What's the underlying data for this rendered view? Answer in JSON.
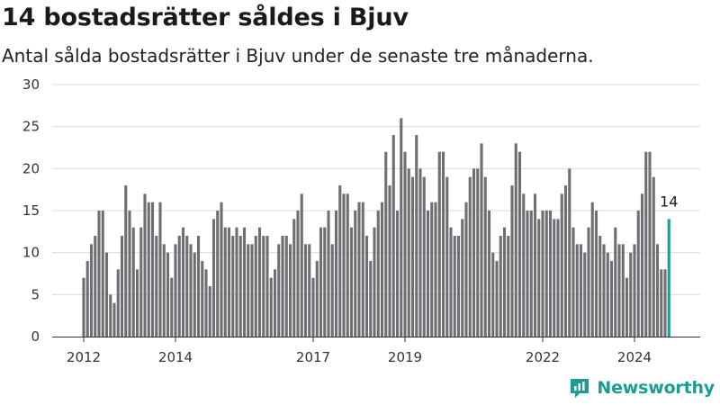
{
  "header": {
    "title": "14 bostadsrätter såldes i Bjuv",
    "subtitle": "Antal sålda bostadsrätter i Bjuv under de senaste tre månaderna."
  },
  "brand": {
    "name": "Newsworthy",
    "icon": "newsworthy-logo-icon",
    "color": "#1a9e93"
  },
  "chart_data": {
    "type": "bar",
    "title": "14 bostadsrätter såldes i Bjuv",
    "subtitle": "Antal sålda bostadsrätter i Bjuv under de senaste tre månaderna.",
    "xlabel": "",
    "ylabel": "",
    "ylim": [
      0,
      30
    ],
    "yticks": [
      0,
      5,
      10,
      15,
      20,
      25,
      30
    ],
    "x_start": "2012-01",
    "x_step": "month",
    "xticks": [
      {
        "label": "2012",
        "date": "2012-01"
      },
      {
        "label": "2014",
        "date": "2014-01"
      },
      {
        "label": "2017",
        "date": "2017-01"
      },
      {
        "label": "2019",
        "date": "2019-01"
      },
      {
        "label": "2022",
        "date": "2022-01"
      },
      {
        "label": "2024",
        "date": "2024-01"
      }
    ],
    "grid": true,
    "bar_color": "#6f6e73",
    "highlight_color": "#1a9e93",
    "last_value_label": "14",
    "values": [
      7,
      9,
      11,
      12,
      15,
      15,
      10,
      5,
      4,
      8,
      12,
      18,
      15,
      13,
      8,
      13,
      17,
      16,
      16,
      12,
      16,
      11,
      10,
      7,
      11,
      12,
      13,
      12,
      11,
      10,
      12,
      9,
      8,
      6,
      14,
      15,
      16,
      13,
      13,
      12,
      13,
      12,
      13,
      11,
      11,
      12,
      13,
      12,
      12,
      7,
      8,
      11,
      12,
      12,
      11,
      14,
      15,
      17,
      11,
      11,
      7,
      9,
      13,
      13,
      15,
      11,
      15,
      18,
      17,
      17,
      13,
      15,
      16,
      16,
      12,
      9,
      13,
      15,
      16,
      22,
      18,
      24,
      15,
      26,
      22,
      20,
      19,
      24,
      20,
      19,
      15,
      16,
      16,
      22,
      22,
      19,
      13,
      12,
      12,
      14,
      16,
      19,
      20,
      20,
      23,
      19,
      15,
      10,
      9,
      12,
      13,
      12,
      18,
      23,
      22,
      17,
      15,
      15,
      17,
      14,
      15,
      15,
      15,
      14,
      14,
      17,
      18,
      20,
      13,
      11,
      11,
      10,
      13,
      16,
      15,
      12,
      11,
      10,
      9,
      13,
      11,
      11,
      7,
      10,
      11,
      15,
      17,
      22,
      22,
      19,
      11,
      8,
      8,
      14
    ]
  }
}
